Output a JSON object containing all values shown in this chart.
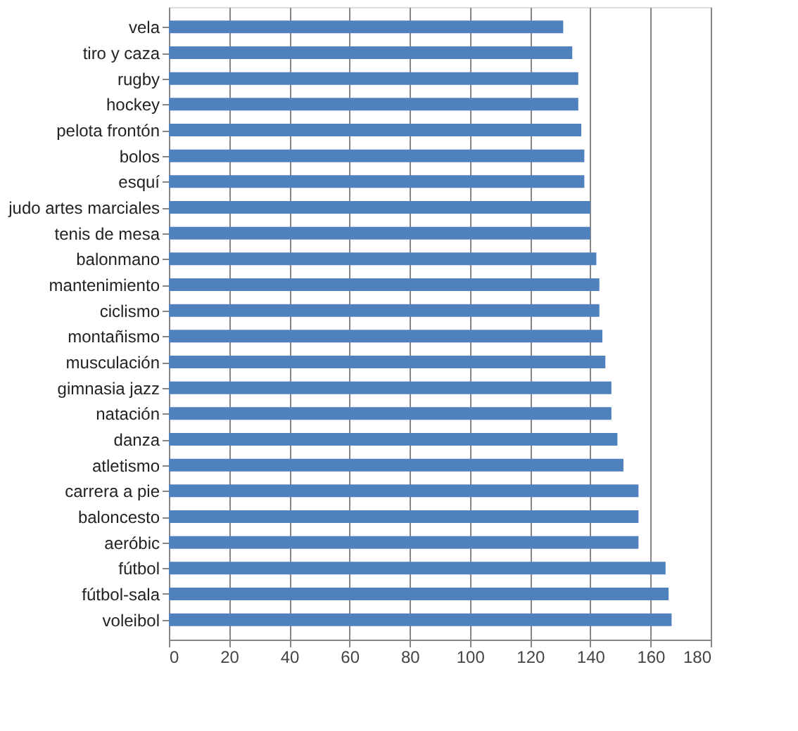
{
  "chart_data": {
    "type": "bar",
    "orientation": "horizontal",
    "categories": [
      "vela",
      "tiro y caza",
      "rugby",
      "hockey",
      "pelota frontón",
      "bolos",
      "esquí",
      "judo artes marciales",
      "tenis de mesa",
      "balonmano",
      "mantenimiento",
      "ciclismo",
      "montañismo",
      "musculación",
      "gimnasia jazz",
      "natación",
      "danza",
      "atletismo",
      "carrera a pie",
      "baloncesto",
      "aeróbic",
      "fútbol",
      "fútbol-sala",
      "voleibol"
    ],
    "values": [
      131,
      134,
      136,
      136,
      137,
      138,
      138,
      140,
      140,
      142,
      143,
      143,
      144,
      145,
      147,
      147,
      149,
      151,
      156,
      156,
      156,
      165,
      166,
      167
    ],
    "color": "#4f81bd",
    "xlim": [
      0,
      180
    ],
    "xticks": [
      0,
      20,
      40,
      60,
      80,
      100,
      120,
      140,
      160,
      180
    ],
    "grid": "x"
  }
}
